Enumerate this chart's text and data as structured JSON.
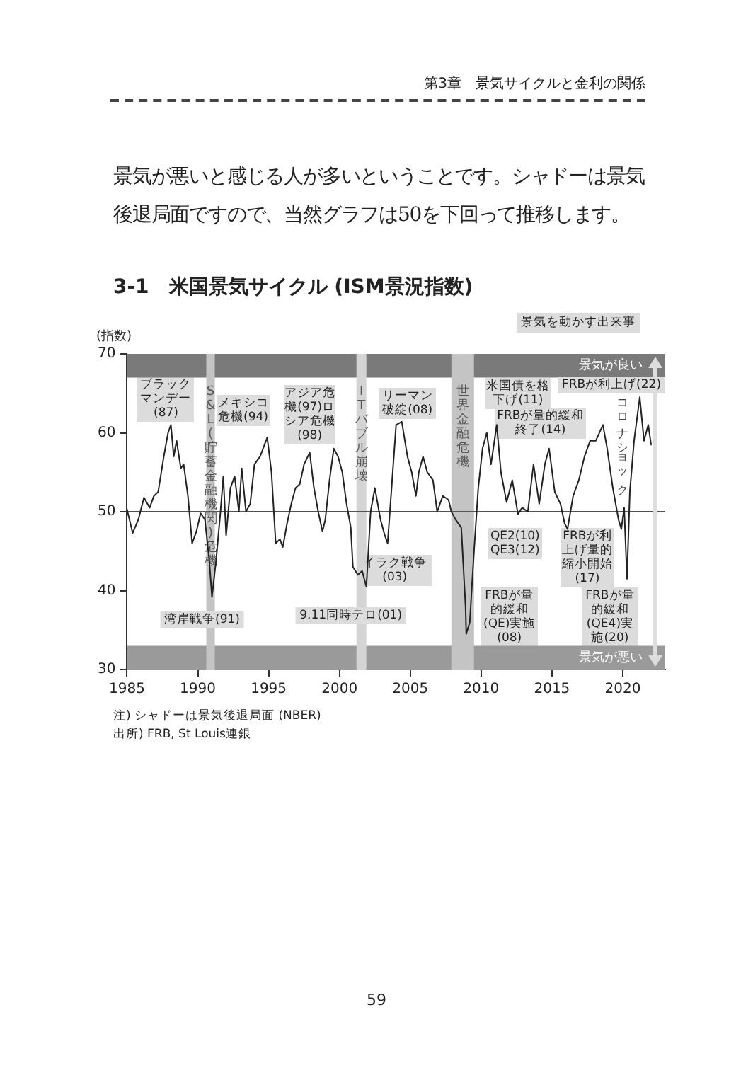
{
  "chart_data": {
    "type": "line",
    "title": "3-1　米国景気サイクル (ISM景況指数)",
    "ylabel": "(指数)",
    "xlim": [
      1985,
      2023
    ],
    "xticks": [
      1985,
      1990,
      1995,
      2000,
      2005,
      2010,
      2015,
      2020
    ],
    "ylim": [
      30,
      70
    ],
    "yticks": [
      30,
      40,
      50,
      60,
      70
    ],
    "grid": false,
    "legend": false,
    "marker": "none",
    "line_style": "solid",
    "series": [
      {
        "color": "#222222",
        "x": [
          1985.0,
          1985.4,
          1985.8,
          1986.2,
          1986.6,
          1986.9,
          1987.2,
          1987.6,
          1987.9,
          1988.1,
          1988.3,
          1988.5,
          1988.8,
          1989.0,
          1989.3,
          1989.6,
          1989.9,
          1990.2,
          1990.5,
          1990.8,
          1991.0,
          1991.3,
          1991.6,
          1991.8,
          1992.0,
          1992.3,
          1992.6,
          1992.9,
          1993.1,
          1993.4,
          1993.7,
          1994.0,
          1994.4,
          1994.9,
          1995.2,
          1995.5,
          1995.8,
          1996.0,
          1996.3,
          1996.6,
          1996.9,
          1997.2,
          1997.5,
          1997.9,
          1998.2,
          1998.5,
          1998.8,
          1999.0,
          1999.3,
          1999.6,
          1999.9,
          2000.2,
          2000.5,
          2000.8,
          2000.95,
          2001.3,
          2001.6,
          2001.9,
          2002.2,
          2002.5,
          2002.9,
          2003.2,
          2003.4,
          2003.7,
          2004.0,
          2004.4,
          2004.8,
          2005.1,
          2005.4,
          2005.6,
          2005.9,
          2006.2,
          2006.6,
          2006.9,
          2007.3,
          2007.7,
          2007.9,
          2008.2,
          2008.6,
          2008.9,
          2008.95,
          2009.2,
          2009.5,
          2009.8,
          2010.1,
          2010.4,
          2010.7,
          2011.1,
          2011.4,
          2011.8,
          2012.2,
          2012.6,
          2012.9,
          2013.3,
          2013.7,
          2014.1,
          2014.5,
          2014.8,
          2015.2,
          2015.6,
          2015.9,
          2016.1,
          2016.5,
          2016.9,
          2017.3,
          2017.7,
          2018.1,
          2018.6,
          2018.9,
          2019.3,
          2019.7,
          2019.9,
          2020.1,
          2020.3,
          2020.5,
          2020.8,
          2021.2,
          2021.5,
          2021.8,
          2022.0
        ],
        "values": [
          50.3,
          47.3,
          49,
          51.8,
          50.5,
          52,
          52.5,
          57,
          60,
          61,
          57,
          59,
          55.5,
          56,
          52,
          46,
          47.5,
          49.8,
          49,
          44,
          39.2,
          44,
          50,
          54.5,
          47,
          53,
          54.5,
          50,
          55.5,
          50,
          51,
          56,
          57,
          59.4,
          55,
          46,
          46.5,
          45.5,
          48.5,
          51,
          53,
          53.5,
          56,
          57.5,
          53,
          50,
          47.5,
          49,
          54,
          58,
          57,
          55,
          51,
          48,
          43,
          42,
          42.5,
          40.5,
          50,
          53,
          49,
          47,
          46,
          53.5,
          61,
          61.4,
          57,
          55,
          52,
          55,
          57,
          55,
          54,
          50,
          52,
          51.5,
          50,
          49,
          48,
          38,
          34.5,
          36,
          45,
          53,
          58,
          60,
          56,
          61,
          55,
          51.2,
          54,
          49.7,
          50.5,
          50,
          56,
          51,
          56,
          58,
          52.5,
          51,
          48.5,
          47.8,
          52,
          54,
          57,
          59,
          59,
          61,
          58,
          53,
          49,
          47.8,
          50.5,
          41.5,
          52.5,
          59,
          64.5,
          59,
          61,
          58.5
        ]
      }
    ],
    "ref_lines": [
      {
        "axis": "y",
        "value": 50,
        "color": "#555555"
      }
    ],
    "bands": [
      {
        "axis": "y",
        "from": 67,
        "to": 70,
        "label": "景気が良い",
        "color": "#7a7a7a"
      },
      {
        "axis": "y",
        "from": 30,
        "to": 33,
        "label": "景気が悪い",
        "color": "#9a9a9a"
      },
      {
        "axis": "x",
        "from": 1990.6,
        "to": 1991.2,
        "label": "S&L(貯蓄金融機関)危機",
        "color": "#c4c4c4"
      },
      {
        "axis": "x",
        "from": 2001.2,
        "to": 2001.9,
        "label": "ITバブル崩壊",
        "color": "#d4d4d4"
      },
      {
        "axis": "x",
        "from": 2007.9,
        "to": 2009.5,
        "label": "世界金融危機",
        "color": "#c4c4c4"
      }
    ],
    "annotations": [
      "第3章　景気サイクルと金利の関係",
      "景気が悪いと感じる人が多いということです。シャドーは景気後退局面ですので、当然グラフは50を下回って推移します。",
      "景気を動かす出来事",
      "注) シャドーは景気後退局面 (NBER)",
      "出所) FRB, St Louis連銀",
      "59",
      "ブラックマンデー(87)",
      "メキシコ危機(94)",
      "アジア危機(97)ロシア危機(98)",
      "リーマン破綻(08)",
      "湾岸戦争(91)",
      "9.11同時テロ(01)",
      "イラク戦争(03)",
      "米国債を格下げ(11)",
      "FRBが利上げ(22)",
      "FRBが量的緩和終了(14)",
      "QE2(10) QE3(12)",
      "FRBが利上げ量的縮小開始(17)",
      "FRBが量的緩和(QE)実施(08)",
      "FRBが量的緩和(QE4)実施(20)",
      "コロナショック"
    ]
  }
}
